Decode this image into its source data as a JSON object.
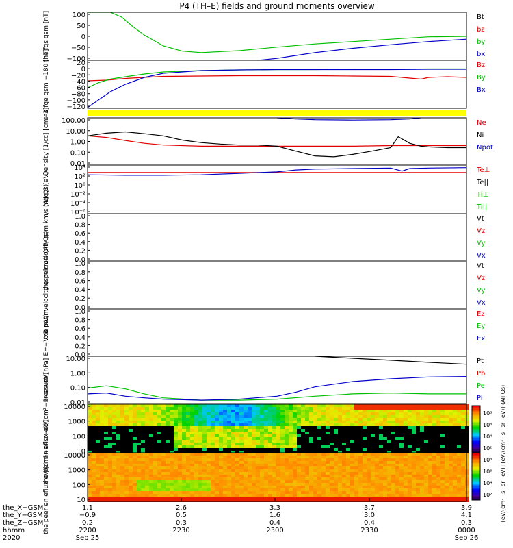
{
  "title": "P4 (TH–E) fields and ground moments overview",
  "colors": {
    "black": "#000000",
    "red": "#e00000",
    "green": "#00c000",
    "blue": "#0000c8",
    "yellow": "#ffff00",
    "frame": "#000000"
  },
  "chart_data": [
    {
      "type": "line",
      "panel": "fgs_gsm",
      "ylabel": "the fgs gsm [nT]",
      "yticks": [
        "100",
        "50",
        "0",
        "−50",
        "−100"
      ],
      "ylim": [
        -100,
        100
      ],
      "legend": [
        {
          "label": "Bt",
          "color": "#000000"
        },
        {
          "label": "bz",
          "color": "#e00000"
        },
        {
          "label": "by",
          "color": "#00c000"
        },
        {
          "label": "bx",
          "color": "#0000c8"
        }
      ],
      "series": [
        {
          "name": "by",
          "color": "#00c000",
          "x": [
            0,
            0.03,
            0.06,
            0.09,
            0.12,
            0.15,
            0.2,
            0.25,
            0.3,
            0.4,
            0.5,
            0.6,
            0.7,
            0.8,
            0.9,
            1.0
          ],
          "y": [
            100,
            100,
            100,
            80,
            40,
            5,
            -40,
            -62,
            -68,
            -60,
            -45,
            -32,
            -22,
            -12,
            -2,
            0
          ]
        },
        {
          "name": "bx",
          "color": "#0000c8",
          "x": [
            0.45,
            0.5,
            0.55,
            0.6,
            0.7,
            0.8,
            0.9,
            1.0
          ],
          "y": [
            -100,
            -92,
            -80,
            -68,
            -50,
            -35,
            -22,
            -12
          ]
        }
      ]
    },
    {
      "type": "line",
      "panel": "fge_gsm",
      "ylabel": "the fge gsm −180 [nT]",
      "yticks": [
        "20",
        "0",
        "−20",
        "−40",
        "−60",
        "−80",
        "−100",
        "−120"
      ],
      "ylim": [
        -120,
        20
      ],
      "legend": [
        {
          "label": "Bz",
          "color": "#e00000"
        },
        {
          "label": "By",
          "color": "#00c000"
        },
        {
          "label": "Bx",
          "color": "#0000c8"
        }
      ],
      "series": [
        {
          "name": "Bz",
          "color": "#e00000",
          "x": [
            0,
            0.05,
            0.1,
            0.15,
            0.2,
            0.3,
            0.4,
            0.5,
            0.6,
            0.7,
            0.8,
            0.85,
            0.88,
            0.9,
            0.95,
            1.0
          ],
          "y": [
            -40,
            -38,
            -33,
            -30,
            -27,
            -26,
            -25,
            -25,
            -25,
            -26,
            -27,
            -32,
            -35,
            -30,
            -28,
            -30
          ]
        },
        {
          "name": "By",
          "color": "#00c000",
          "x": [
            0,
            0.03,
            0.06,
            0.1,
            0.15,
            0.2,
            0.3,
            0.4,
            0.5,
            0.6,
            0.7,
            0.8,
            0.9,
            1.0
          ],
          "y": [
            -60,
            -45,
            -35,
            -28,
            -20,
            -14,
            -10,
            -8,
            -7,
            -7,
            -6,
            -6,
            -5,
            -5
          ]
        },
        {
          "name": "Bx",
          "color": "#0000c8",
          "x": [
            0,
            0.03,
            0.06,
            0.1,
            0.15,
            0.2,
            0.3,
            0.4,
            0.5,
            0.6,
            0.7,
            0.8,
            0.9,
            1.0
          ],
          "y": [
            -118,
            -95,
            -72,
            -50,
            -30,
            -18,
            -10,
            -8,
            -7,
            -7,
            -7,
            -7,
            -6,
            -6
          ]
        }
      ]
    },
    {
      "type": "line",
      "panel": "density",
      "ylabel": "Density [1/cc] [cm−3]",
      "yticks": [
        "100.00",
        "10.00",
        "1.00",
        "0.10",
        "0.01"
      ],
      "yscale": "log",
      "ylim": [
        0.01,
        100
      ],
      "legend": [
        {
          "label": "Ne",
          "color": "#e00000"
        },
        {
          "label": "Ni",
          "color": "#000000"
        },
        {
          "label": "Npot",
          "color": "#0000c8"
        }
      ],
      "series": [
        {
          "name": "Ne",
          "color": "#e00000",
          "x": [
            0,
            0.05,
            0.1,
            0.15,
            0.2,
            0.3,
            0.4,
            0.5,
            0.6,
            0.7,
            0.8,
            0.9,
            1.0
          ],
          "y": [
            3.0,
            2.2,
            1.2,
            0.7,
            0.5,
            0.4,
            0.4,
            0.4,
            0.4,
            0.4,
            0.45,
            0.45,
            0.45
          ]
        },
        {
          "name": "Ni",
          "color": "#000000",
          "x": [
            0,
            0.05,
            0.1,
            0.15,
            0.2,
            0.25,
            0.3,
            0.35,
            0.4,
            0.45,
            0.5,
            0.55,
            0.6,
            0.65,
            0.7,
            0.75,
            0.8,
            0.82,
            0.85,
            0.88,
            0.9,
            0.95,
            1.0
          ],
          "y": [
            3.0,
            5.0,
            6.5,
            4.5,
            3.0,
            1.3,
            0.8,
            0.6,
            0.5,
            0.5,
            0.4,
            0.15,
            0.06,
            0.05,
            0.08,
            0.15,
            0.3,
            2.5,
            0.7,
            0.4,
            0.35,
            0.3,
            0.3
          ]
        },
        {
          "name": "Npot",
          "color": "#0000c8",
          "x": [
            0.5,
            0.55,
            0.6,
            0.7,
            0.8,
            0.85,
            0.88
          ],
          "y": [
            100,
            80,
            70,
            65,
            70,
            80,
            100
          ]
        }
      ]
    },
    {
      "type": "line",
      "panel": "temperature",
      "ylabel": "mgqt3 [eV]",
      "yticks": [
        "10⁴",
        "10²",
        "10⁰",
        "10⁻²",
        "10⁻⁴",
        "10⁻⁶"
      ],
      "yscale": "log",
      "ylim": [
        1e-06,
        10000.0
      ],
      "legend": [
        {
          "label": "Te⊥",
          "color": "#e00000"
        },
        {
          "label": "Te||",
          "color": "#000000"
        },
        {
          "label": "Ti⊥",
          "color": "#00c000"
        },
        {
          "label": "Ti||",
          "color": "#00c000"
        }
      ],
      "series": [
        {
          "name": "Te⊥",
          "color": "#e00000",
          "x": [
            0,
            0.2,
            0.4,
            0.6,
            0.8,
            1.0
          ],
          "y": [
            300,
            300,
            300,
            300,
            300,
            300
          ]
        },
        {
          "name": "Ti||",
          "color": "#0000c8",
          "x": [
            0,
            0.1,
            0.2,
            0.3,
            0.4,
            0.5,
            0.55,
            0.6,
            0.7,
            0.8,
            0.83,
            0.85,
            0.9,
            1.0
          ],
          "y": [
            100,
            80,
            80,
            100,
            200,
            400,
            1000,
            1500,
            2000,
            2500,
            600,
            2000,
            2500,
            3000
          ]
        }
      ]
    },
    {
      "type": "line",
      "panel": "peir_velocity",
      "ylabel": "the peir velocity gsm km/s (All Qs)",
      "yticks": [
        "1.0",
        "0.8",
        "0.6",
        "0.4",
        "0.2",
        "0.0"
      ],
      "ylim": [
        0,
        1
      ],
      "legend": [
        {
          "label": "Vt",
          "color": "#000000"
        },
        {
          "label": "Vz",
          "color": "#e00000"
        },
        {
          "label": "Vy",
          "color": "#00c000"
        },
        {
          "label": "Vx",
          "color": "#0000c8"
        }
      ],
      "series": []
    },
    {
      "type": "line",
      "panel": "peer_velocity",
      "ylabel": "the peer velocity gsm km/s (All Qs)",
      "yticks": [
        "1.0",
        "0.8",
        "0.6",
        "0.4",
        "0.2",
        "0.0"
      ],
      "ylim": [
        0,
        1
      ],
      "legend": [
        {
          "label": "Vt",
          "color": "#000000"
        },
        {
          "label": "Vz",
          "color": "#e00000"
        },
        {
          "label": "Vy",
          "color": "#00c000"
        },
        {
          "label": "Vx",
          "color": "#0000c8"
        }
      ],
      "series": []
    },
    {
      "type": "line",
      "panel": "efield",
      "ylabel": "E=−VxB mV/m",
      "yticks": [
        "1.0",
        "0.8",
        "0.6",
        "0.4",
        "0.2",
        "0.0"
      ],
      "ylim": [
        0,
        1
      ],
      "legend": [
        {
          "label": "Ez",
          "color": "#e00000"
        },
        {
          "label": "Ey",
          "color": "#00c000"
        },
        {
          "label": "Ex",
          "color": "#0000c8"
        }
      ],
      "series": []
    },
    {
      "type": "line",
      "panel": "pressure",
      "ylabel": "Pressure [nPa]",
      "yticks": [
        "10.00",
        "1.00",
        "0.10",
        "0.01"
      ],
      "yscale": "log",
      "ylim": [
        0.005,
        20
      ],
      "legend": [
        {
          "label": "Pt",
          "color": "#000000"
        },
        {
          "label": "Pb",
          "color": "#e00000"
        },
        {
          "label": "Pe",
          "color": "#00c000"
        },
        {
          "label": "Pi",
          "color": "#0000c8"
        }
      ],
      "series": [
        {
          "name": "Pt",
          "color": "#000000",
          "x": [
            0.6,
            0.7,
            0.8,
            0.9,
            1.0
          ],
          "y": [
            20,
            14,
            10,
            7,
            5
          ]
        },
        {
          "name": "Pe",
          "color": "#00c000",
          "x": [
            0,
            0.05,
            0.1,
            0.15,
            0.2,
            0.3,
            0.4,
            0.5,
            0.6,
            0.7,
            0.8,
            0.9,
            1.0
          ],
          "y": [
            0.08,
            0.12,
            0.07,
            0.03,
            0.015,
            0.01,
            0.01,
            0.012,
            0.02,
            0.03,
            0.035,
            0.03,
            0.03
          ]
        },
        {
          "name": "Pi",
          "color": "#0000c8",
          "x": [
            0,
            0.05,
            0.1,
            0.15,
            0.2,
            0.3,
            0.4,
            0.5,
            0.55,
            0.6,
            0.7,
            0.8,
            0.9,
            1.0
          ],
          "y": [
            0.03,
            0.035,
            0.02,
            0.015,
            0.012,
            0.01,
            0.012,
            0.02,
            0.04,
            0.1,
            0.25,
            0.4,
            0.55,
            0.6
          ]
        }
      ]
    },
    {
      "type": "heatmap",
      "panel": "peir_eflux",
      "ylabel": "the peir en eflux eV/(cm²−s−sr−eV)",
      "yticks": [
        "10000",
        "1000",
        "100",
        "10"
      ],
      "yscale": "log",
      "ylim": [
        5,
        25000
      ]
    },
    {
      "type": "heatmap",
      "panel": "peer_eflux",
      "ylabel": "the peer en eflux eV/(cm²−s−sr−eV)",
      "yticks": [
        "10000",
        "1000",
        "100",
        "10"
      ],
      "yscale": "log",
      "ylim": [
        5,
        25000
      ]
    }
  ],
  "colorbar": {
    "ticks": [
      "10⁸",
      "10⁶",
      "10⁴",
      "10²",
      "10⁸",
      "10⁶",
      "10⁴",
      "10²"
    ],
    "label": "[eV/(cm²−s−sr−eV)] [eV/(cm²−s−sr−eV)] (All Qs)"
  },
  "xaxis": {
    "row_labels": [
      "the_X−GSM",
      "the_Y−GSM",
      "the_Z−GSM",
      "hhmm",
      "2020"
    ],
    "columns": [
      {
        "values": [
          "1.1",
          "−0.9",
          "0.2",
          "2200",
          "Sep 25"
        ]
      },
      {
        "values": [
          "2.6",
          "0.5",
          "0.3",
          "2230",
          ""
        ]
      },
      {
        "values": [
          "3.3",
          "1.6",
          "0.4",
          "2300",
          ""
        ]
      },
      {
        "values": [
          "3.7",
          "3.0",
          "0.4",
          "2330",
          ""
        ]
      },
      {
        "values": [
          "3.9",
          "4.1",
          "0.3",
          "0000",
          "Sep 26"
        ]
      }
    ]
  }
}
